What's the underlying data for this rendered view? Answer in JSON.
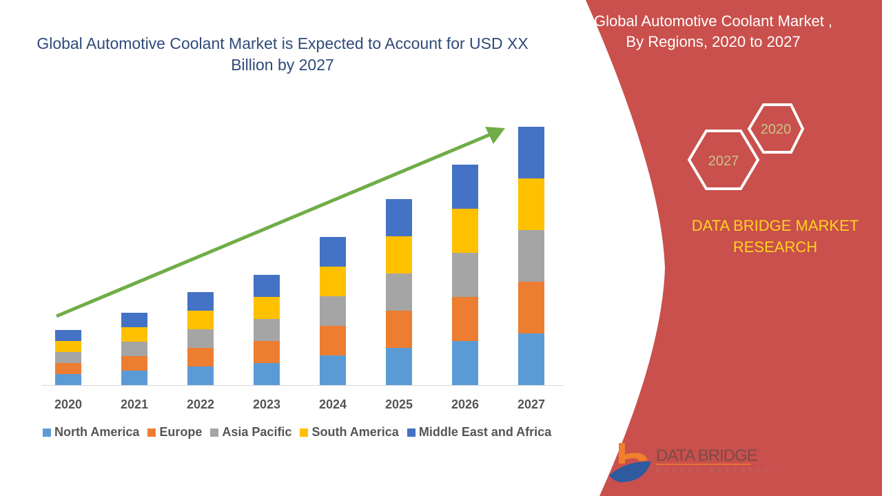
{
  "chart_data": {
    "type": "bar",
    "stacked": true,
    "title": "Global Automotive Coolant Market is Expected to Account for USD XX Billion by 2027",
    "categories": [
      "2020",
      "2021",
      "2022",
      "2023",
      "2024",
      "2025",
      "2026",
      "2027"
    ],
    "series": [
      {
        "name": "North America",
        "color": "#5b9bd5",
        "values": [
          1.6,
          2.1,
          2.7,
          3.2,
          4.3,
          5.4,
          6.4,
          7.5
        ]
      },
      {
        "name": "Europe",
        "color": "#ed7d31",
        "values": [
          1.6,
          2.1,
          2.7,
          3.2,
          4.3,
          5.4,
          6.4,
          7.5
        ]
      },
      {
        "name": "Asia Pacific",
        "color": "#a5a5a5",
        "values": [
          1.6,
          2.1,
          2.7,
          3.2,
          4.3,
          5.4,
          6.4,
          7.5
        ]
      },
      {
        "name": "South America",
        "color": "#ffc000",
        "values": [
          1.6,
          2.1,
          2.7,
          3.2,
          4.3,
          5.4,
          6.4,
          7.5
        ]
      },
      {
        "name": "Middle East and Africa",
        "color": "#4472c4",
        "values": [
          1.6,
          2.1,
          2.7,
          3.2,
          4.3,
          5.4,
          6.4,
          7.5
        ]
      }
    ],
    "legend_position": "bottom",
    "grid": false,
    "trend_arrow_color": "#70ad47"
  },
  "side_panel": {
    "title_line1": "Global Automotive Coolant Market ,",
    "title_line2": "By Regions, 2020 to 2027",
    "hex_start": "2020",
    "hex_end": "2027",
    "brand_line1": "DATA BRIDGE MARKET",
    "brand_line2": "RESEARCH",
    "panel_color": "#c9504c"
  },
  "logo": {
    "name": "DATA BRIDGE",
    "tagline": "MARKET RESEARCH"
  }
}
